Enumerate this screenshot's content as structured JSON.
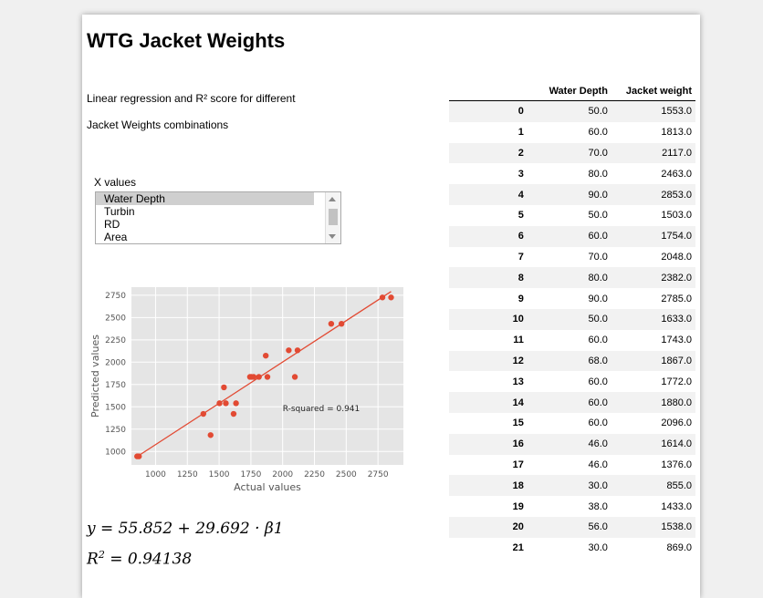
{
  "page": {
    "title": "WTG Jacket Weights",
    "description_line1": "Linear regression and R² score for different",
    "description_line2": "Jacket Weights combinations"
  },
  "selector": {
    "label": "X values",
    "options": [
      "Water Depth",
      "Turbin",
      "RD",
      "Area"
    ],
    "selected": "Water Depth"
  },
  "equations": {
    "regression": "y = 55.852 + 29.692 · β1",
    "r2_prefix": "R",
    "r2_exp": "2",
    "r2_value": " = 0.94138"
  },
  "table": {
    "columns": [
      "Water Depth",
      "Jacket weight"
    ],
    "rows": [
      {
        "index": "0",
        "water_depth": "50.0",
        "jacket_weight": "1553.0"
      },
      {
        "index": "1",
        "water_depth": "60.0",
        "jacket_weight": "1813.0"
      },
      {
        "index": "2",
        "water_depth": "70.0",
        "jacket_weight": "2117.0"
      },
      {
        "index": "3",
        "water_depth": "80.0",
        "jacket_weight": "2463.0"
      },
      {
        "index": "4",
        "water_depth": "90.0",
        "jacket_weight": "2853.0"
      },
      {
        "index": "5",
        "water_depth": "50.0",
        "jacket_weight": "1503.0"
      },
      {
        "index": "6",
        "water_depth": "60.0",
        "jacket_weight": "1754.0"
      },
      {
        "index": "7",
        "water_depth": "70.0",
        "jacket_weight": "2048.0"
      },
      {
        "index": "8",
        "water_depth": "80.0",
        "jacket_weight": "2382.0"
      },
      {
        "index": "9",
        "water_depth": "90.0",
        "jacket_weight": "2785.0"
      },
      {
        "index": "10",
        "water_depth": "50.0",
        "jacket_weight": "1633.0"
      },
      {
        "index": "11",
        "water_depth": "60.0",
        "jacket_weight": "1743.0"
      },
      {
        "index": "12",
        "water_depth": "68.0",
        "jacket_weight": "1867.0"
      },
      {
        "index": "13",
        "water_depth": "60.0",
        "jacket_weight": "1772.0"
      },
      {
        "index": "14",
        "water_depth": "60.0",
        "jacket_weight": "1880.0"
      },
      {
        "index": "15",
        "water_depth": "60.0",
        "jacket_weight": "2096.0"
      },
      {
        "index": "16",
        "water_depth": "46.0",
        "jacket_weight": "1614.0"
      },
      {
        "index": "17",
        "water_depth": "46.0",
        "jacket_weight": "1376.0"
      },
      {
        "index": "18",
        "water_depth": "30.0",
        "jacket_weight": "855.0"
      },
      {
        "index": "19",
        "water_depth": "38.0",
        "jacket_weight": "1433.0"
      },
      {
        "index": "20",
        "water_depth": "56.0",
        "jacket_weight": "1538.0"
      },
      {
        "index": "21",
        "water_depth": "30.0",
        "jacket_weight": "869.0"
      }
    ]
  },
  "chart_data": {
    "type": "scatter",
    "xlabel": "Actual values",
    "ylabel": "Predicted values",
    "xlim": [
      810,
      2950
    ],
    "ylim": [
      850,
      2840
    ],
    "xticks": [
      1000,
      1250,
      1500,
      1750,
      2000,
      2250,
      2500,
      2750
    ],
    "yticks": [
      1000,
      1250,
      1500,
      1750,
      2000,
      2250,
      2500,
      2750
    ],
    "grid": true,
    "annotation": "R-squared = 0.941",
    "fit_line": {
      "x": [
        855,
        2853
      ],
      "y": [
        943,
        2791
      ]
    },
    "points": [
      {
        "x": 1553,
        "y": 1540
      },
      {
        "x": 1813,
        "y": 1835
      },
      {
        "x": 2117,
        "y": 2133
      },
      {
        "x": 2463,
        "y": 2430
      },
      {
        "x": 2853,
        "y": 2725
      },
      {
        "x": 1503,
        "y": 1540
      },
      {
        "x": 1754,
        "y": 1835
      },
      {
        "x": 2048,
        "y": 2133
      },
      {
        "x": 2382,
        "y": 2430
      },
      {
        "x": 2785,
        "y": 2725
      },
      {
        "x": 1633,
        "y": 1540
      },
      {
        "x": 1743,
        "y": 1835
      },
      {
        "x": 1867,
        "y": 2073
      },
      {
        "x": 1772,
        "y": 1835
      },
      {
        "x": 1880,
        "y": 1835
      },
      {
        "x": 2096,
        "y": 1835
      },
      {
        "x": 1614,
        "y": 1421
      },
      {
        "x": 1376,
        "y": 1421
      },
      {
        "x": 855,
        "y": 946
      },
      {
        "x": 1433,
        "y": 1184
      },
      {
        "x": 1538,
        "y": 1718
      },
      {
        "x": 869,
        "y": 946
      }
    ],
    "colors": {
      "points": "#e24a33",
      "line": "#e24a33",
      "background": "#e5e5e5",
      "grid": "#ffffff"
    }
  }
}
